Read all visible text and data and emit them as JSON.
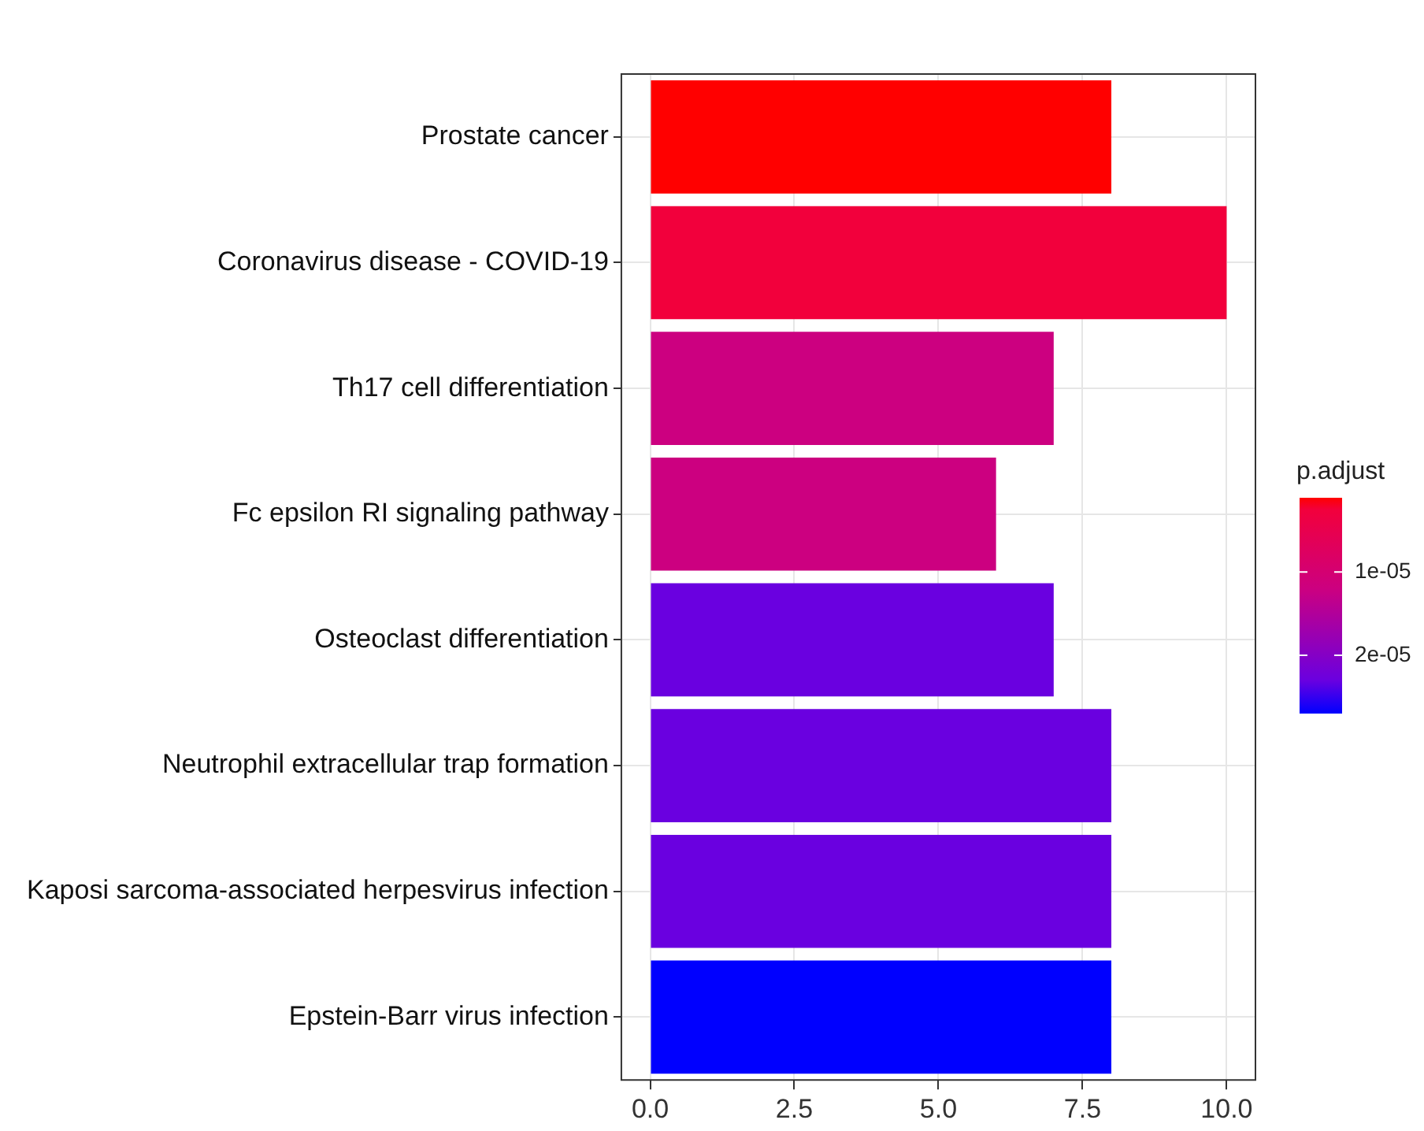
{
  "chart_data": {
    "type": "bar",
    "orientation": "horizontal",
    "categories": [
      "Prostate cancer",
      "Coronavirus disease - COVID-19",
      "Th17 cell differentiation",
      "Fc epsilon RI signaling pathway",
      "Osteoclast differentiation",
      "Neutrophil extracellular trap formation",
      "Kaposi sarcoma-associated herpesvirus infection",
      "Epstein-Barr virus infection"
    ],
    "values": [
      8,
      10,
      7,
      6,
      7,
      8,
      8,
      8
    ],
    "colors": [
      "#ff0000",
      "#f2003c",
      "#cc0080",
      "#cc0080",
      "#6a00e0",
      "#6a00e0",
      "#6a00e0",
      "#0000ff"
    ],
    "cvalues": [
      1.1e-06,
      2.5e-06,
      1.2e-05,
      1.2e-05,
      2.3e-05,
      2.3e-05,
      2.3e-05,
      2.7e-05
    ],
    "xlim": [
      -0.5,
      10.5
    ],
    "xticks": [
      {
        "value": 0,
        "label": "0.0"
      },
      {
        "value": 2.5,
        "label": "2.5"
      },
      {
        "value": 5,
        "label": "5.0"
      },
      {
        "value": 7.5,
        "label": "7.5"
      },
      {
        "value": 10,
        "label": "10.0"
      }
    ],
    "clabel": "p.adjust",
    "clim": [
      1.1e-06,
      2.7e-05
    ],
    "cticks": [
      {
        "value": 1e-05,
        "label": "1e-05"
      },
      {
        "value": 2e-05,
        "label": "2e-05"
      }
    ],
    "grid": true,
    "legend": false
  }
}
